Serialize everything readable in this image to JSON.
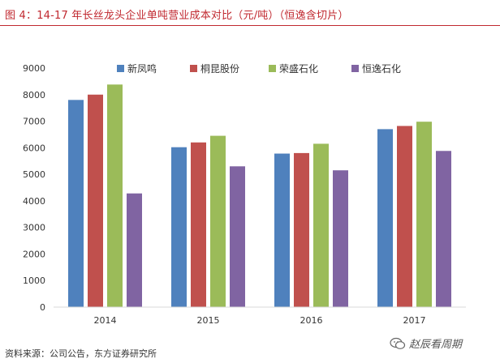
{
  "figure_title": "图 4：14-17 年长丝龙头企业单吨营业成本对比（元/吨）（恒逸含切片）",
  "source_note": "资料来源：公司公告，东方证券研究所",
  "watermark": "赵辰看周期",
  "colors": {
    "title": "#c0282f",
    "axis": "#d9d9d9",
    "series": [
      "#4f81bd",
      "#c0504d",
      "#9bbb59",
      "#8064a2"
    ]
  },
  "chart_data": {
    "type": "bar",
    "title": "14-17 年长丝龙头企业单吨营业成本对比（元/吨）（恒逸含切片）",
    "xlabel": "",
    "ylabel": "",
    "ylim": [
      0,
      9000
    ],
    "yticks": [
      0,
      1000,
      2000,
      3000,
      4000,
      5000,
      6000,
      7000,
      8000,
      9000
    ],
    "grid": false,
    "legend_position": "top",
    "categories": [
      "2014",
      "2015",
      "2016",
      "2017"
    ],
    "series": [
      {
        "name": "新凤鸣",
        "values": [
          7800,
          6020,
          5780,
          6700
        ]
      },
      {
        "name": "桐昆股份",
        "values": [
          8000,
          6200,
          5800,
          6820
        ]
      },
      {
        "name": "荣盛石化",
        "values": [
          8380,
          6450,
          6150,
          6980
        ]
      },
      {
        "name": "恒逸石化",
        "values": [
          4280,
          5300,
          5150,
          5880
        ]
      }
    ]
  }
}
